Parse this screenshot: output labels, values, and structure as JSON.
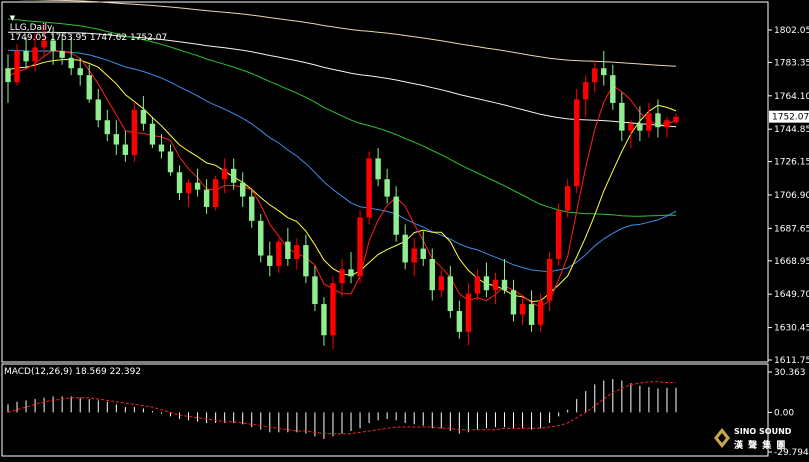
{
  "colors": {
    "background": "#000000",
    "frame": "#ffffff",
    "bull": "#ff0000",
    "bear": "#90ee90",
    "ma_red": "#ff2020",
    "ma_yellow": "#ffff40",
    "ma_blue": "#3b8fe8",
    "ma_green": "#2fc22f",
    "ma_white": "#f4f4f4",
    "ma_tan": "#e8d7b0",
    "macd_hist": "#ffffff",
    "macd_signal": "#ff2020",
    "price_tag": "#ffffff"
  },
  "header": {
    "symbol": "LLG,Daily",
    "ohlc": "1749.05 1753.95 1747.62 1752.07"
  },
  "macd_header": "MACD(12,26,9) 18.569 22.392",
  "logo": {
    "line1": "SINO SOUND",
    "line2": "漢 聲 集 團",
    "icon": "diamond-logo-icon"
  },
  "chart_data": {
    "type": "candlestick",
    "price_axis": {
      "ylim": [
        1611.75,
        1802.05
      ],
      "ticks": [
        "1802.05",
        "1783.35",
        "1764.10",
        "1744.85",
        "1726.15",
        "1706.90",
        "1687.65",
        "1668.95",
        "1649.70",
        "1630.45",
        "1611.75"
      ],
      "last_price": "1752.07"
    },
    "macd_axis": {
      "ylim": [
        -29.794,
        30.363
      ],
      "ticks": [
        "30.363",
        "0.00",
        "-29.794"
      ]
    },
    "candles": [
      [
        1780,
        1788,
        1760,
        1772
      ],
      [
        1772,
        1794,
        1770,
        1790
      ],
      [
        1790,
        1798,
        1780,
        1784
      ],
      [
        1784,
        1800,
        1778,
        1792
      ],
      [
        1792,
        1806,
        1786,
        1796
      ],
      [
        1796,
        1804,
        1782,
        1790
      ],
      [
        1790,
        1800,
        1782,
        1786
      ],
      [
        1786,
        1798,
        1776,
        1780
      ],
      [
        1780,
        1786,
        1770,
        1776
      ],
      [
        1776,
        1782,
        1760,
        1762
      ],
      [
        1762,
        1768,
        1746,
        1750
      ],
      [
        1750,
        1756,
        1738,
        1742
      ],
      [
        1742,
        1750,
        1730,
        1736
      ],
      [
        1736,
        1744,
        1726,
        1730
      ],
      [
        1730,
        1760,
        1726,
        1756
      ],
      [
        1756,
        1764,
        1744,
        1748
      ],
      [
        1748,
        1752,
        1734,
        1736
      ],
      [
        1736,
        1742,
        1728,
        1732
      ],
      [
        1732,
        1736,
        1718,
        1720
      ],
      [
        1720,
        1724,
        1704,
        1708
      ],
      [
        1708,
        1716,
        1700,
        1714
      ],
      [
        1714,
        1722,
        1706,
        1710
      ],
      [
        1710,
        1716,
        1696,
        1700
      ],
      [
        1700,
        1718,
        1698,
        1716
      ],
      [
        1716,
        1728,
        1708,
        1722
      ],
      [
        1722,
        1728,
        1710,
        1714
      ],
      [
        1714,
        1720,
        1700,
        1706
      ],
      [
        1706,
        1710,
        1688,
        1692
      ],
      [
        1692,
        1696,
        1668,
        1672
      ],
      [
        1672,
        1680,
        1660,
        1666
      ],
      [
        1666,
        1682,
        1662,
        1680
      ],
      [
        1680,
        1688,
        1666,
        1670
      ],
      [
        1670,
        1682,
        1664,
        1678
      ],
      [
        1678,
        1684,
        1656,
        1660
      ],
      [
        1660,
        1666,
        1640,
        1644
      ],
      [
        1644,
        1648,
        1620,
        1626
      ],
      [
        1626,
        1660,
        1618,
        1656
      ],
      [
        1656,
        1670,
        1648,
        1664
      ],
      [
        1664,
        1674,
        1656,
        1660
      ],
      [
        1660,
        1698,
        1656,
        1694
      ],
      [
        1694,
        1732,
        1690,
        1728
      ],
      [
        1728,
        1734,
        1712,
        1716
      ],
      [
        1716,
        1722,
        1702,
        1706
      ],
      [
        1706,
        1712,
        1680,
        1684
      ],
      [
        1684,
        1690,
        1664,
        1668
      ],
      [
        1668,
        1682,
        1660,
        1676
      ],
      [
        1676,
        1686,
        1666,
        1670
      ],
      [
        1670,
        1676,
        1646,
        1652
      ],
      [
        1652,
        1664,
        1648,
        1660
      ],
      [
        1660,
        1666,
        1636,
        1640
      ],
      [
        1640,
        1646,
        1624,
        1628
      ],
      [
        1628,
        1656,
        1620,
        1650
      ],
      [
        1650,
        1664,
        1646,
        1660
      ],
      [
        1660,
        1668,
        1648,
        1652
      ],
      [
        1652,
        1662,
        1644,
        1658
      ],
      [
        1658,
        1670,
        1650,
        1652
      ],
      [
        1652,
        1658,
        1634,
        1638
      ],
      [
        1638,
        1648,
        1632,
        1644
      ],
      [
        1644,
        1652,
        1628,
        1632
      ],
      [
        1632,
        1650,
        1628,
        1646
      ],
      [
        1646,
        1674,
        1640,
        1670
      ],
      [
        1670,
        1702,
        1666,
        1698
      ],
      [
        1698,
        1716,
        1694,
        1712
      ],
      [
        1712,
        1768,
        1708,
        1762
      ],
      [
        1762,
        1776,
        1752,
        1772
      ],
      [
        1772,
        1784,
        1766,
        1780
      ],
      [
        1780,
        1790,
        1770,
        1776
      ],
      [
        1776,
        1782,
        1756,
        1760
      ],
      [
        1760,
        1766,
        1738,
        1744
      ],
      [
        1744,
        1750,
        1734,
        1748
      ],
      [
        1748,
        1758,
        1738,
        1744
      ],
      [
        1744,
        1760,
        1740,
        1754
      ],
      [
        1754,
        1762,
        1740,
        1746
      ],
      [
        1746,
        1752,
        1740,
        1750
      ],
      [
        1749.05,
        1753.95,
        1747.62,
        1752.07
      ]
    ],
    "macd_hist": [
      6,
      8,
      9,
      10,
      11,
      12,
      12,
      12,
      11,
      10,
      9,
      8,
      6,
      4,
      4,
      3,
      1,
      -1,
      -3,
      -5,
      -6,
      -7,
      -8,
      -8,
      -8,
      -8,
      -9,
      -11,
      -13,
      -15,
      -15,
      -15,
      -15,
      -16,
      -18,
      -20,
      -18,
      -16,
      -14,
      -12,
      -8,
      -6,
      -5,
      -6,
      -8,
      -9,
      -10,
      -12,
      -12,
      -14,
      -16,
      -15,
      -13,
      -12,
      -11,
      -11,
      -12,
      -12,
      -13,
      -12,
      -8,
      -3,
      2,
      10,
      16,
      21,
      24,
      25,
      24,
      22,
      20,
      19,
      18,
      18.5,
      18.569
    ],
    "macd_signal": [
      0,
      2,
      4,
      6,
      8,
      9,
      10,
      11,
      11,
      11,
      10,
      9,
      8,
      7,
      6,
      5,
      4,
      2,
      0,
      -2,
      -3,
      -4,
      -5,
      -6,
      -7,
      -7,
      -8,
      -9,
      -10,
      -11,
      -12,
      -13,
      -14,
      -14,
      -15,
      -16,
      -16,
      -16,
      -16,
      -15,
      -14,
      -13,
      -12,
      -11,
      -11,
      -11,
      -11,
      -11,
      -12,
      -12,
      -13,
      -13,
      -13,
      -13,
      -13,
      -12,
      -12,
      -12,
      -12,
      -12,
      -11,
      -10,
      -8,
      -4,
      0,
      5,
      10,
      15,
      18,
      21,
      22,
      23,
      23,
      22.5,
      22.392
    ]
  }
}
